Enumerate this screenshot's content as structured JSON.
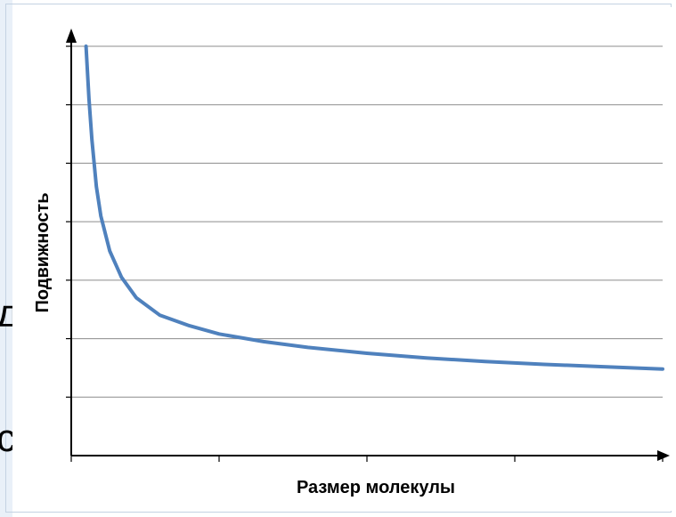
{
  "bleed_text": [
    "д",
    "с"
  ],
  "chart_data": {
    "type": "line",
    "title": "",
    "xlabel": "Размер молекулы",
    "ylabel": "Подвижность",
    "x_ticks_shown": false,
    "y_ticks_shown": false,
    "grid": "horizontal",
    "xlim": [
      0,
      20
    ],
    "ylim": [
      0,
      7
    ],
    "series": [
      {
        "color": "#4f81bd",
        "x": [
          0.5,
          0.6,
          0.7,
          0.85,
          1.0,
          1.3,
          1.7,
          2.2,
          3.0,
          4.0,
          5.0,
          6.5,
          8.0,
          10.0,
          12.0,
          14.0,
          16.0,
          18.0,
          20.0
        ],
        "y": [
          7.0,
          6.1,
          5.4,
          4.6,
          4.1,
          3.5,
          3.05,
          2.7,
          2.4,
          2.22,
          2.08,
          1.95,
          1.85,
          1.75,
          1.67,
          1.61,
          1.56,
          1.52,
          1.48
        ]
      }
    ]
  },
  "colors": {
    "axis": "#000000",
    "grid": "#8c8c8c",
    "line": "#4f81bd"
  }
}
